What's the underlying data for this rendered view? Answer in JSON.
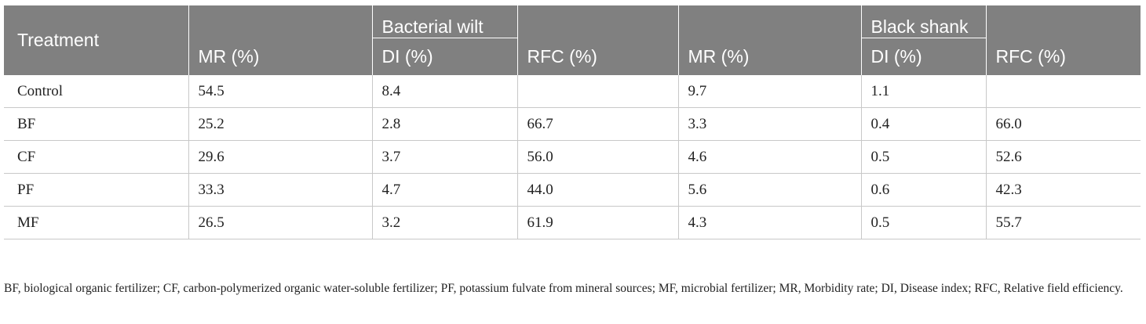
{
  "table": {
    "treatment_header": "Treatment",
    "groups": [
      "Bacterial wilt",
      "Black shank"
    ],
    "subheaders": [
      "MR (%)",
      "DI (%)",
      "RFC (%)",
      "MR (%)",
      "DI (%)",
      "RFC (%)"
    ],
    "rows": [
      [
        "Control",
        "54.5",
        "8.4",
        "",
        "9.7",
        "1.1",
        ""
      ],
      [
        "BF",
        "25.2",
        "2.8",
        "66.7",
        "3.3",
        "0.4",
        "66.0"
      ],
      [
        "CF",
        "29.6",
        "3.7",
        "56.0",
        "4.6",
        "0.5",
        "52.6"
      ],
      [
        "PF",
        "33.3",
        "4.7",
        "44.0",
        "5.6",
        "0.6",
        "42.3"
      ],
      [
        "MF",
        "26.5",
        "3.2",
        "61.9",
        "4.3",
        "0.5",
        "55.7"
      ]
    ]
  },
  "footnote": "BF, biological organic fertilizer; CF, carbon-polymerized organic water-soluble fertilizer; PF, potassium fulvate from mineral sources; MF, microbial fertilizer; MR, Morbidity rate; DI, Disease index; RFC, Relative field efficiency."
}
